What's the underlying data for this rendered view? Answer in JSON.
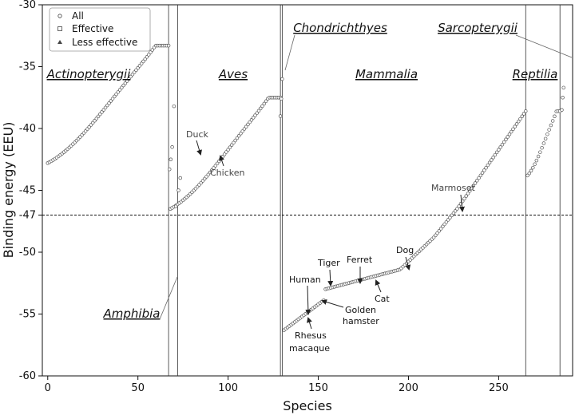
{
  "chart_data": {
    "type": "scatter",
    "xlabel": "Species",
    "ylabel": "Binding energy (EEU)",
    "xlim": [
      -3,
      291
    ],
    "ylim": [
      -60,
      -30
    ],
    "x_ticks": [
      0,
      50,
      100,
      150,
      200,
      250
    ],
    "y_ticks": [
      -30,
      -35,
      -40,
      -45,
      -47,
      -50,
      -55,
      -60
    ],
    "threshold": -47,
    "legend": {
      "position": "top-left",
      "entries": [
        {
          "label": "All",
          "marker": "circle"
        },
        {
          "label": "Effective",
          "marker": "square"
        },
        {
          "label": "Less effective",
          "marker": "triangle"
        }
      ]
    },
    "dividers": [
      67,
      72,
      129,
      130,
      265,
      284
    ],
    "groups": [
      {
        "name": "Actinopterygii",
        "x_start": 0,
        "x_end": 67,
        "y_start": -42.8,
        "y_end": -33.3
      },
      {
        "name": "Aves",
        "x_start": 68,
        "x_end": 129,
        "y_start": -46.5,
        "y_end": -37.5
      },
      {
        "name": "Chondrichthyes",
        "x_start": 129,
        "x_end": 130,
        "y_start": -39.0,
        "y_end": -36.0
      },
      {
        "name": "Mammalia",
        "x_start": 131,
        "x_end": 265,
        "y_start": -56.3,
        "y_end": -38.6
      },
      {
        "name": "Reptilia",
        "x_start": 266,
        "x_end": 284,
        "y_start": -43.8,
        "y_end": -38.6
      },
      {
        "name": "Sarcopterygii",
        "x_start": 284,
        "x_end": 286,
        "y_start": -37.5,
        "y_end": -36.7
      },
      {
        "name": "Amphibia",
        "x_start": 67,
        "x_end": 72,
        "y_start": -45.0,
        "y_end": -38.2
      }
    ],
    "annotations": [
      {
        "label": "Duck",
        "x": 83,
        "y": -42.2
      },
      {
        "label": "Chicken",
        "x": 94,
        "y": -41.9
      },
      {
        "label": "Marmoset",
        "x": 229,
        "y": -46.7
      },
      {
        "label": "Human",
        "x": 143,
        "y": -55.2
      },
      {
        "label": "Tiger",
        "x": 156,
        "y": -52.7
      },
      {
        "label": "Ferret",
        "x": 172,
        "y": -52.4
      },
      {
        "label": "Dog",
        "x": 197,
        "y": -51.3
      },
      {
        "label": "Cat",
        "x": 180,
        "y": -52.2
      },
      {
        "label": "Golden hamster",
        "x": 151,
        "y": -54.0
      },
      {
        "label": "Rhesus macaque",
        "x": 143,
        "y": -55.5
      }
    ]
  }
}
